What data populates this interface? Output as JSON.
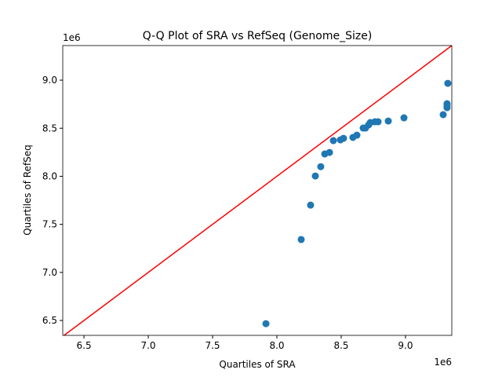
{
  "chart_data": {
    "type": "scatter",
    "title": "Q-Q Plot of SRA vs RefSeq (Genome_Size)",
    "xlabel": "Quartiles of SRA",
    "ylabel": "Quartiles of RefSeq",
    "x_offset_label": "1e6",
    "y_offset_label": "1e6",
    "xlim": [
      6.335,
      9.36
    ],
    "ylim": [
      6.345,
      9.36
    ],
    "xticks": [
      6.5,
      7.0,
      7.5,
      8.0,
      8.5,
      9.0
    ],
    "xtick_labels": [
      "6.5",
      "7.0",
      "7.5",
      "8.0",
      "8.5",
      "9.0"
    ],
    "yticks": [
      6.5,
      7.0,
      7.5,
      8.0,
      8.5,
      9.0
    ],
    "ytick_labels": [
      "6.5",
      "7.0",
      "7.5",
      "8.0",
      "8.5",
      "9.0"
    ],
    "point_color": "#1f77b4",
    "reference_line": {
      "type": "y=x",
      "color": "#ff0000"
    },
    "points": [
      [
        7.915,
        6.467
      ],
      [
        8.189,
        7.342
      ],
      [
        8.262,
        7.7
      ],
      [
        8.299,
        8.003
      ],
      [
        8.341,
        8.1
      ],
      [
        8.372,
        8.232
      ],
      [
        8.409,
        8.248
      ],
      [
        8.439,
        8.371
      ],
      [
        8.494,
        8.379
      ],
      [
        8.518,
        8.395
      ],
      [
        8.591,
        8.404
      ],
      [
        8.622,
        8.428
      ],
      [
        8.671,
        8.502
      ],
      [
        8.689,
        8.502
      ],
      [
        8.713,
        8.534
      ],
      [
        8.726,
        8.559
      ],
      [
        8.762,
        8.567
      ],
      [
        8.787,
        8.567
      ],
      [
        8.866,
        8.575
      ],
      [
        8.988,
        8.608
      ],
      [
        9.293,
        8.641
      ],
      [
        9.323,
        8.714
      ],
      [
        9.323,
        8.74
      ],
      [
        9.323,
        8.755
      ],
      [
        9.329,
        8.967
      ]
    ]
  }
}
